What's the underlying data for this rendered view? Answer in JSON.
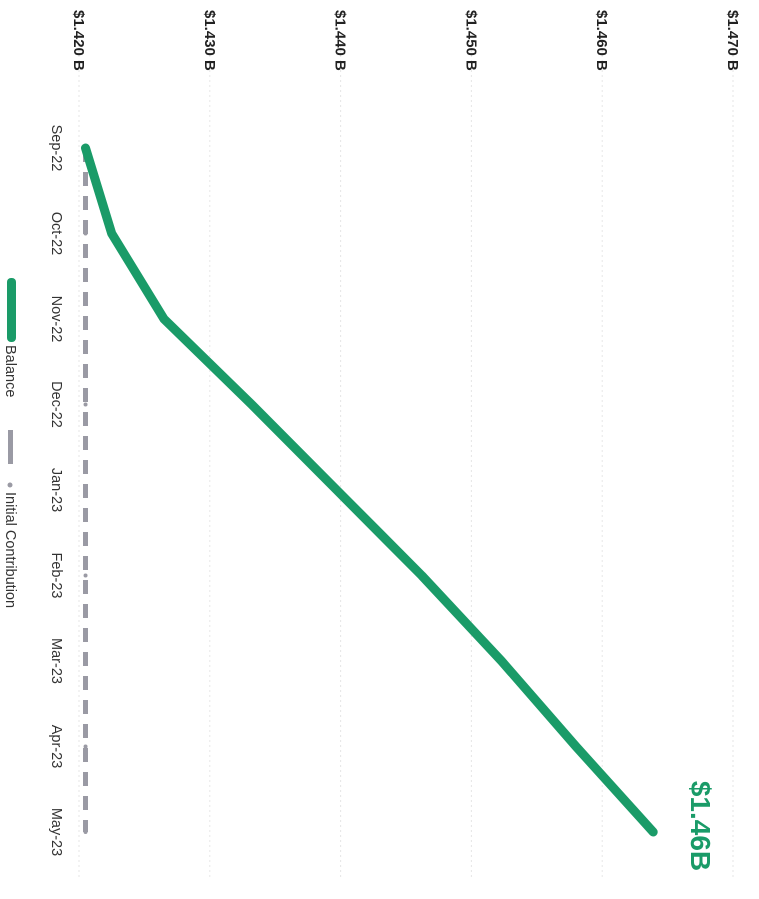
{
  "chart_data": {
    "type": "line",
    "categories": [
      "Sep-22",
      "Oct-22",
      "Nov-22",
      "Dec-22",
      "Jan-23",
      "Feb-23",
      "Mar-23",
      "Apr-23",
      "May-23"
    ],
    "y_tick_labels": [
      "$1.420 B",
      "$1.430 B",
      "$1.440 B",
      "$1.450 B",
      "$1.460 B",
      "$1.470 B"
    ],
    "ylim": [
      1.42,
      1.47
    ],
    "series": [
      {
        "name": "Balance",
        "color": "#1a9b68",
        "style": "solid",
        "values": [
          1.4205,
          1.4225,
          1.4265,
          1.4332,
          1.4397,
          1.4462,
          1.4523,
          1.458,
          1.4639
        ]
      },
      {
        "name": "Initial Contribution",
        "color": "#9a9aa4",
        "style": "dashed",
        "values": [
          1.4205,
          1.4205,
          1.4205,
          1.4205,
          1.4205,
          1.4205,
          1.4205,
          1.4205,
          1.4205
        ]
      }
    ],
    "end_label": "$1.46B",
    "grid": true,
    "legend_position": "bottom"
  }
}
